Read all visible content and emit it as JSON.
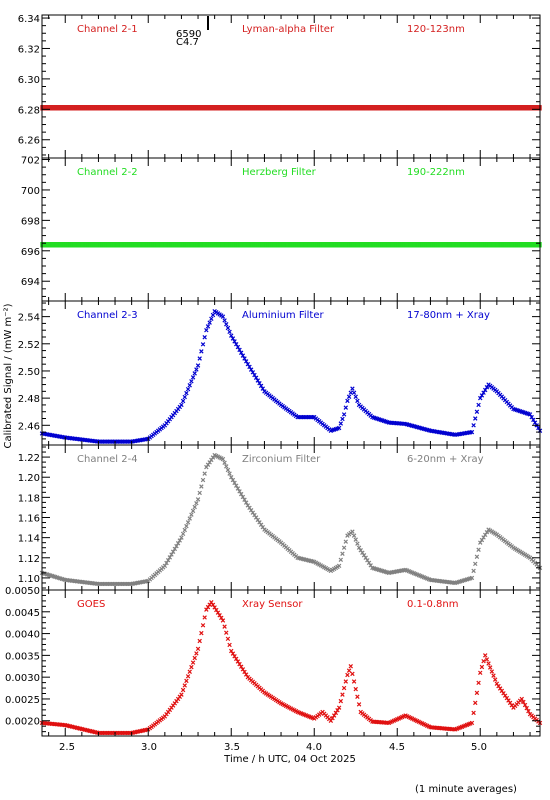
{
  "xlabel": "Time / h UTC, 04 Oct 2025",
  "ylabel": "Calibrated Signal / (mW m⁻²)",
  "footnote": "(1 minute averages)",
  "marker_text": [
    "6590",
    "C4.7"
  ],
  "xlim": [
    2.36,
    5.36
  ],
  "xticks": [
    "2.5",
    "3.0",
    "3.5",
    "4.0",
    "4.5",
    "5.0"
  ],
  "chart_data": [
    {
      "type": "scatter",
      "channel": "Channel 2-1",
      "filter": "Lyman-alpha Filter",
      "band": "120-123nm",
      "color": "#d42020",
      "ylim": [
        6.248,
        6.342
      ],
      "yticks": [
        "6.26",
        "6.28",
        "6.30",
        "6.32",
        "6.34"
      ],
      "x": [
        2.36,
        5.36
      ],
      "y": [
        6.281,
        6.281
      ]
    },
    {
      "type": "scatter",
      "channel": "Channel 2-2",
      "filter": "Herzberg Filter",
      "band": "190-222nm",
      "color": "#22dd22",
      "ylim": [
        692.7,
        702.1
      ],
      "yticks": [
        "694",
        "696",
        "698",
        "700",
        "702"
      ],
      "x": [
        2.36,
        5.36
      ],
      "y": [
        696.4,
        696.4
      ]
    },
    {
      "type": "scatter",
      "channel": "Channel 2-3",
      "filter": "Aluminium Filter",
      "band": "17-80nm + Xray",
      "color": "#0000d0",
      "ylim": [
        2.4455,
        2.5515
      ],
      "yticks": [
        "2.46",
        "2.48",
        "2.50",
        "2.52",
        "2.54"
      ],
      "x": [
        2.36,
        2.5,
        2.7,
        2.9,
        3.0,
        3.1,
        3.2,
        3.3,
        3.35,
        3.4,
        3.45,
        3.5,
        3.6,
        3.7,
        3.8,
        3.9,
        4.0,
        4.1,
        4.15,
        4.18,
        4.2,
        4.23,
        4.27,
        4.35,
        4.45,
        4.55,
        4.7,
        4.85,
        4.95,
        5.0,
        5.05,
        5.1,
        5.2,
        5.3,
        5.36
      ],
      "y": [
        2.454,
        2.451,
        2.448,
        2.448,
        2.45,
        2.46,
        2.475,
        2.504,
        2.53,
        2.544,
        2.54,
        2.526,
        2.505,
        2.485,
        2.475,
        2.466,
        2.466,
        2.456,
        2.458,
        2.468,
        2.478,
        2.487,
        2.475,
        2.466,
        2.462,
        2.461,
        2.456,
        2.453,
        2.455,
        2.48,
        2.49,
        2.485,
        2.472,
        2.468,
        2.456
      ]
    },
    {
      "type": "scatter",
      "channel": "Channel 2-4",
      "filter": "Zirconium Filter",
      "band": "6-20nm + Xray",
      "color": "#808080",
      "ylim": [
        1.088,
        1.232
      ],
      "yticks": [
        "1.10",
        "1.12",
        "1.14",
        "1.16",
        "1.18",
        "1.20",
        "1.22"
      ],
      "x": [
        2.36,
        2.5,
        2.7,
        2.9,
        3.0,
        3.1,
        3.2,
        3.3,
        3.35,
        3.4,
        3.45,
        3.5,
        3.6,
        3.7,
        3.8,
        3.9,
        4.0,
        4.1,
        4.15,
        4.18,
        4.2,
        4.23,
        4.27,
        4.35,
        4.45,
        4.55,
        4.7,
        4.85,
        4.95,
        5.0,
        5.05,
        5.1,
        5.2,
        5.3,
        5.36
      ],
      "y": [
        1.105,
        1.098,
        1.094,
        1.094,
        1.097,
        1.112,
        1.14,
        1.178,
        1.21,
        1.222,
        1.218,
        1.2,
        1.172,
        1.148,
        1.135,
        1.12,
        1.116,
        1.107,
        1.112,
        1.13,
        1.142,
        1.146,
        1.13,
        1.11,
        1.105,
        1.108,
        1.098,
        1.095,
        1.1,
        1.135,
        1.148,
        1.143,
        1.13,
        1.12,
        1.11
      ]
    },
    {
      "type": "scatter",
      "channel": "GOES",
      "filter": "Xray Sensor",
      "band": "0.1-0.8nm",
      "color": "#e01010",
      "ylim": [
        0.00165,
        0.005
      ],
      "yticks": [
        "0.0020",
        "0.0025",
        "0.0030",
        "0.0035",
        "0.0040",
        "0.0045",
        "0.0050"
      ],
      "x": [
        2.36,
        2.5,
        2.7,
        2.9,
        3.0,
        3.1,
        3.2,
        3.3,
        3.35,
        3.38,
        3.45,
        3.5,
        3.6,
        3.7,
        3.8,
        3.9,
        4.0,
        4.05,
        4.1,
        4.15,
        4.2,
        4.22,
        4.28,
        4.35,
        4.45,
        4.55,
        4.7,
        4.85,
        4.95,
        5.0,
        5.03,
        5.1,
        5.2,
        5.25,
        5.3,
        5.36
      ],
      "y": [
        0.00195,
        0.0019,
        0.00172,
        0.00172,
        0.0018,
        0.0021,
        0.0026,
        0.00365,
        0.00455,
        0.00472,
        0.0043,
        0.0036,
        0.003,
        0.00265,
        0.0024,
        0.0022,
        0.00205,
        0.0022,
        0.002,
        0.0023,
        0.00305,
        0.00325,
        0.0022,
        0.00198,
        0.00195,
        0.00212,
        0.00185,
        0.0018,
        0.00195,
        0.0031,
        0.0035,
        0.00285,
        0.0023,
        0.0025,
        0.00215,
        0.00195
      ]
    }
  ]
}
